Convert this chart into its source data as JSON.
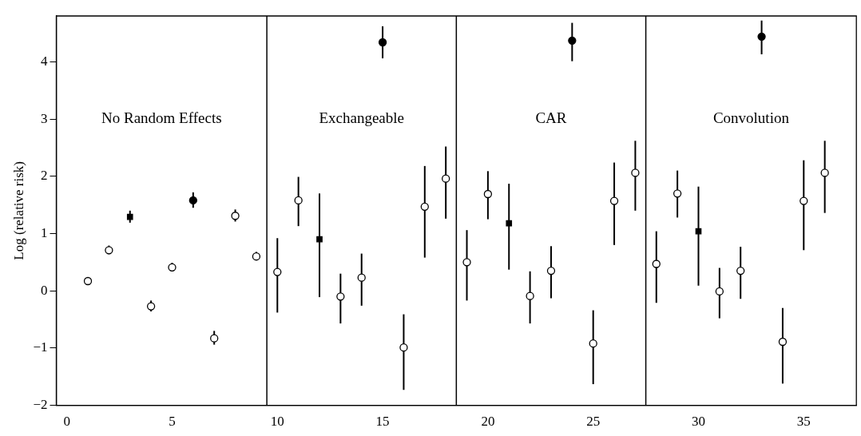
{
  "chart_data": {
    "type": "scatter",
    "ylabel": "Log (relative risk)",
    "xlim": [
      -0.5,
      37.5
    ],
    "ylim": [
      -2,
      4.8
    ],
    "xticks": [
      0,
      5,
      10,
      15,
      20,
      25,
      30,
      35
    ],
    "yticks": [
      -2,
      -1,
      0,
      1,
      2,
      3,
      4
    ],
    "grid": false,
    "legend": false,
    "annotations": [
      "No Random Effects",
      "Exchangeable",
      "CAR",
      "Convolution"
    ],
    "ref_lines": [
      {
        "axis": "x",
        "value": 9.5,
        "color": "#000000"
      },
      {
        "axis": "x",
        "value": 18.5,
        "color": "#000000"
      },
      {
        "axis": "x",
        "value": 27.5,
        "color": "#000000"
      }
    ],
    "series": [
      {
        "color": "#ffffff",
        "marker": "circle",
        "x": [
          1,
          2,
          4,
          5,
          7,
          8,
          9,
          10,
          11,
          13,
          14,
          16,
          17,
          18,
          19,
          20,
          22,
          23,
          25,
          26,
          27,
          28,
          29,
          31,
          32,
          34,
          35,
          36
        ],
        "values": [
          0.17,
          0.71,
          -0.27,
          0.41,
          -0.83,
          1.31,
          0.6,
          0.33,
          1.58,
          -0.1,
          0.23,
          -0.99,
          1.47,
          1.96,
          0.5,
          1.69,
          -0.09,
          0.35,
          -0.92,
          1.57,
          2.06,
          0.47,
          1.7,
          -0.01,
          0.35,
          -0.89,
          1.57,
          2.06
        ],
        "errors": [
          [
            0.1,
            0.24
          ],
          [
            0.64,
            0.79
          ],
          [
            -0.36,
            -0.17
          ],
          [
            0.34,
            0.49
          ],
          [
            -0.94,
            -0.7
          ],
          [
            1.21,
            1.42
          ],
          [
            0.53,
            0.68
          ],
          [
            -0.38,
            0.92
          ],
          [
            1.13,
            1.99
          ],
          [
            -0.57,
            0.3
          ],
          [
            -0.26,
            0.65
          ],
          [
            -1.73,
            -0.41
          ],
          [
            0.58,
            2.18
          ],
          [
            1.26,
            2.52
          ],
          [
            -0.17,
            1.06
          ],
          [
            1.25,
            2.09
          ],
          [
            -0.57,
            0.34
          ],
          [
            -0.13,
            0.78
          ],
          [
            -1.63,
            -0.34
          ],
          [
            0.8,
            2.24
          ],
          [
            1.4,
            2.62
          ],
          [
            -0.21,
            1.04
          ],
          [
            1.28,
            2.1
          ],
          [
            -0.48,
            0.4
          ],
          [
            -0.14,
            0.77
          ],
          [
            -1.62,
            -0.3
          ],
          [
            0.71,
            2.28
          ],
          [
            1.36,
            2.62
          ]
        ]
      },
      {
        "color": "#000000",
        "marker": "square",
        "x": [
          3,
          12,
          21,
          30
        ],
        "values": [
          1.29,
          0.9,
          1.18,
          1.04
        ],
        "errors": [
          [
            1.19,
            1.4
          ],
          [
            -0.11,
            1.7
          ],
          [
            0.37,
            1.87
          ],
          [
            0.09,
            1.82
          ]
        ]
      },
      {
        "color": "#000000",
        "marker": "circle",
        "x": [
          6,
          15,
          24,
          33
        ],
        "values": [
          1.58,
          4.34,
          4.37,
          4.44
        ],
        "errors": [
          [
            1.45,
            1.72
          ],
          [
            4.06,
            4.62
          ],
          [
            4.01,
            4.68
          ],
          [
            4.13,
            4.72
          ]
        ]
      }
    ]
  }
}
